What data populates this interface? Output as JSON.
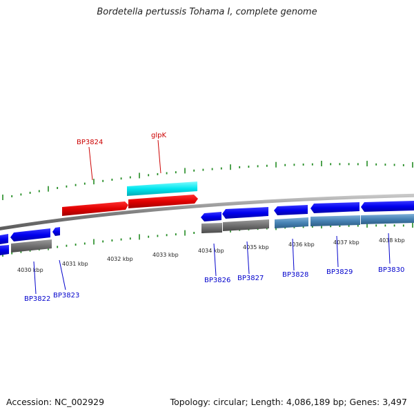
{
  "title": "Bordetella pertussis Tohama I, complete genome",
  "footer": {
    "accession": "Accession: NC_002929",
    "stats": "Topology: circular; Length: 4,086,189 bp; Genes: 3,497"
  },
  "scale": {
    "labels": [
      "4030 kbp",
      "4031 kbp",
      "4032 kbp",
      "4033 kbp",
      "4034 kbp",
      "4035 kbp",
      "4036 kbp",
      "4037 kbp",
      "4038 kbp"
    ]
  },
  "genes_top": [
    {
      "label": "BP3824",
      "color": "#e00000"
    },
    {
      "label": "glpK",
      "color": "#e00000"
    }
  ],
  "genes_bottom": [
    {
      "label": "BP3822",
      "color": "#0000cc"
    },
    {
      "label": "BP3823",
      "color": "#0000cc"
    },
    {
      "label": "BP3826",
      "color": "#0000cc"
    },
    {
      "label": "BP3827",
      "color": "#0000cc"
    },
    {
      "label": "BP3828",
      "color": "#0000cc"
    },
    {
      "label": "BP3829",
      "color": "#0000cc"
    },
    {
      "label": "BP3830",
      "color": "#0000cc"
    }
  ],
  "colors": {
    "forward_cds": "#e00000",
    "forward_rna": "#00e5ee",
    "reverse_cds": "#0000ee",
    "reverse_rna": "#4682b4",
    "gray_feature": "#707070",
    "backbone": "#808080",
    "ticks": "#228b22",
    "label_red": "#cc0000",
    "label_blue": "#0000cc"
  }
}
